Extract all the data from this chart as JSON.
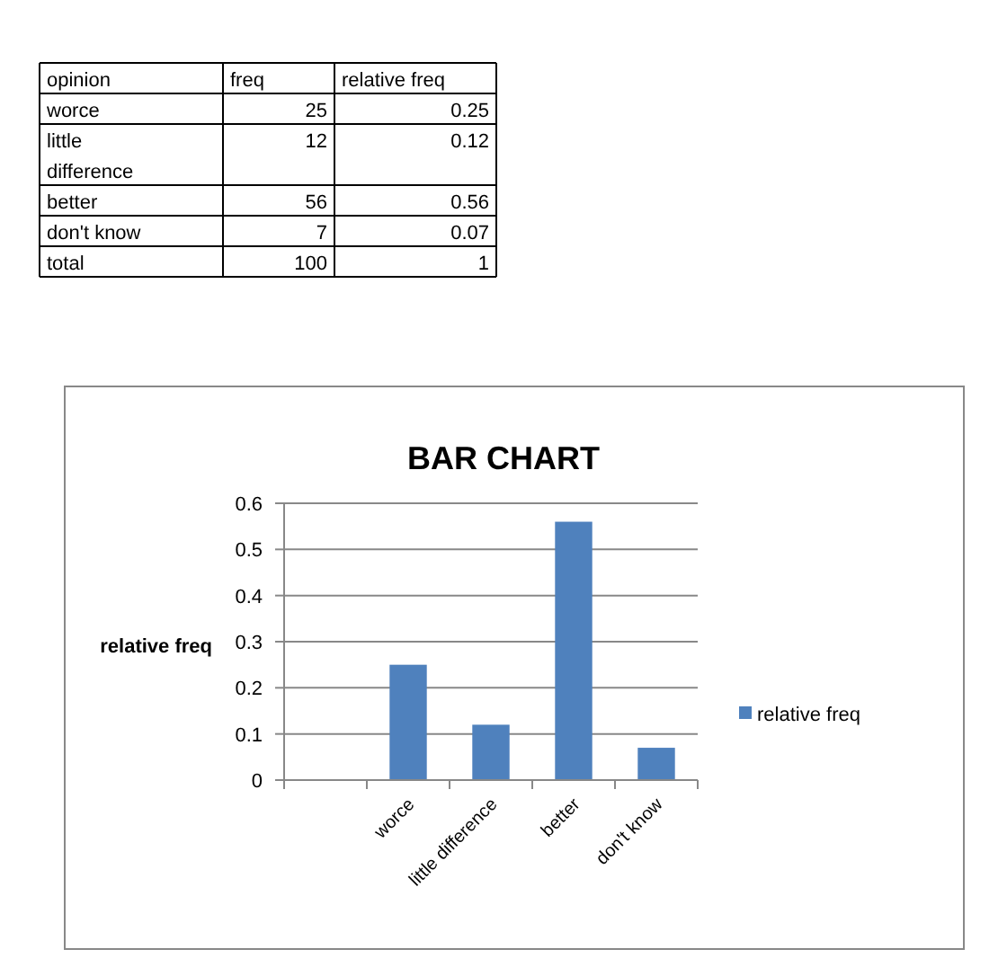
{
  "chart_data": [
    {
      "type": "other",
      "xlabel": "opinion",
      "categories": [
        "worce",
        "little difference",
        "better",
        "don't know",
        "total"
      ],
      "data_labels": true,
      "series": [
        {
          "name": "freq",
          "values": [
            25,
            12,
            56,
            7,
            100
          ]
        },
        {
          "name": "relative freq",
          "values": [
            0.25,
            0.12,
            0.56,
            0.07,
            1
          ]
        }
      ]
    },
    {
      "type": "bar",
      "title": "BAR CHART",
      "ylabel": "relative freq",
      "categories": [
        null,
        "worce",
        "little difference",
        "better",
        "don't know"
      ],
      "series": [
        {
          "name": "relative freq",
          "color": "#4f81bd",
          "values": [
            null,
            0.25,
            0.12,
            0.56,
            0.07
          ]
        }
      ],
      "ylim": [
        0,
        0.6
      ],
      "yticks": [
        {
          "value": 0,
          "label": "0"
        },
        0.1,
        0.2,
        0.3,
        0.4,
        0.5,
        0.6
      ],
      "grid": "y",
      "legend": "right"
    }
  ]
}
